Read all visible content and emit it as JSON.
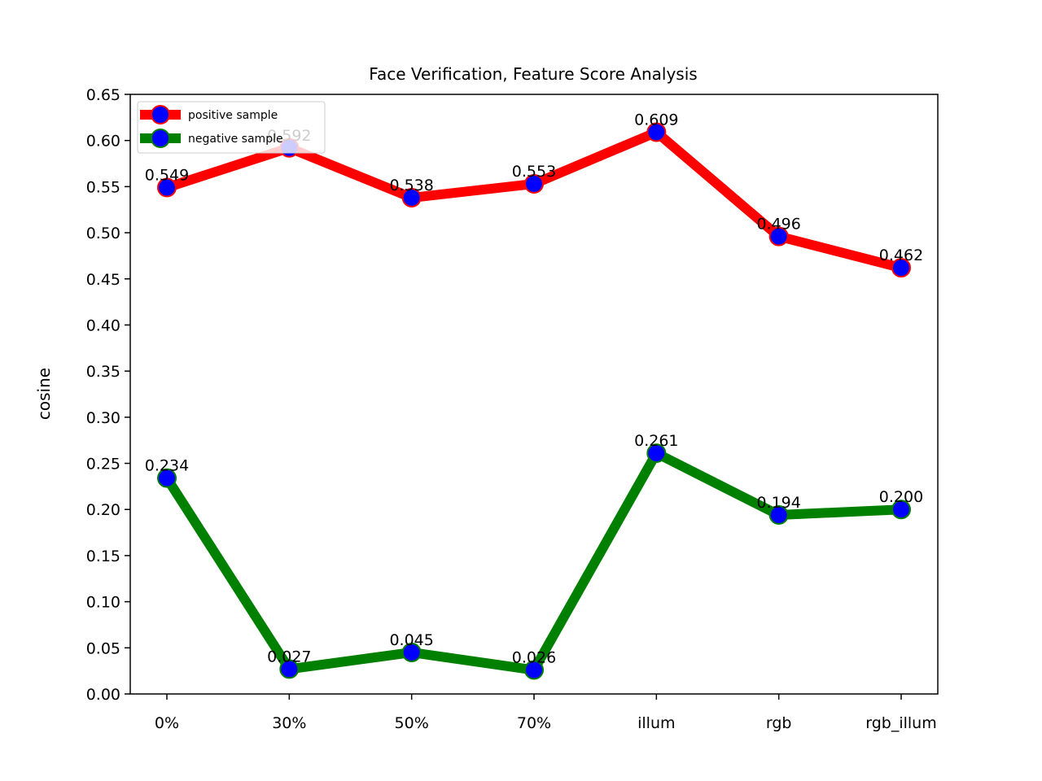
{
  "chart_data": {
    "type": "line",
    "title": "Face Verification, Feature Score Analysis",
    "xlabel": "",
    "ylabel": "cosine",
    "categories": [
      "0%",
      "30%",
      "50%",
      "70%",
      "illum",
      "rgb",
      "rgb_illum"
    ],
    "ylim": [
      0.0,
      0.65
    ],
    "yticks": [
      "0.00",
      "0.05",
      "0.10",
      "0.15",
      "0.20",
      "0.25",
      "0.30",
      "0.35",
      "0.40",
      "0.45",
      "0.50",
      "0.55",
      "0.60",
      "0.65"
    ],
    "grid": false,
    "legend_placement": "top-left",
    "marker_color": "#0000ff",
    "series": [
      {
        "name": "positive sample",
        "color": "#ff0000",
        "values": [
          0.549,
          0.592,
          0.538,
          0.553,
          0.609,
          0.496,
          0.462
        ],
        "labels": [
          "0.549",
          "0.592",
          "0.538",
          "0.553",
          "0.609",
          "0.496",
          "0.462"
        ]
      },
      {
        "name": "negative sample",
        "color": "#008000",
        "values": [
          0.234,
          0.027,
          0.045,
          0.026,
          0.261,
          0.194,
          0.2
        ],
        "labels": [
          "0.234",
          "0.027",
          "0.045",
          "0.026",
          "0.261",
          "0.194",
          "0.200"
        ]
      }
    ]
  }
}
